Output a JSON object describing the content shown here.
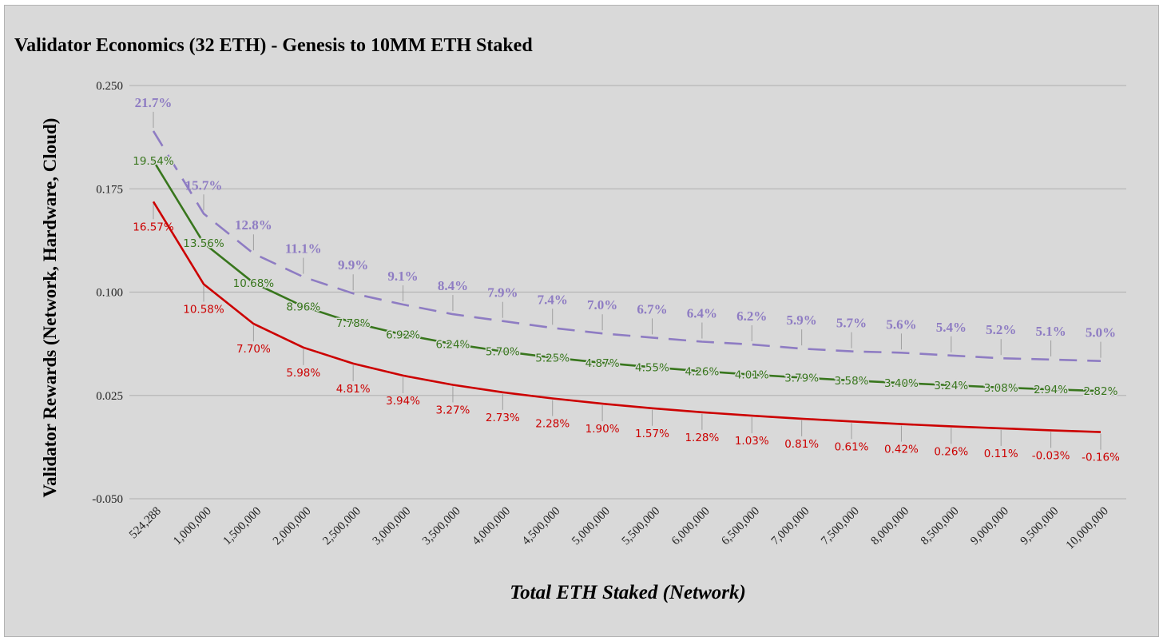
{
  "chart_data": {
    "type": "line",
    "title": "Validator Economics (32 ETH) - Genesis to 10MM ETH Staked",
    "xlabel": "Total ETH Staked (Network)",
    "ylabel": "Validator Rewards (Network, Hardware, Cloud)",
    "ylim": [
      -0.05,
      0.25
    ],
    "yticks": [
      0.25,
      0.175,
      0.1,
      0.025,
      -0.05
    ],
    "ytick_labels": [
      "0.250",
      "0.175",
      "0.100",
      "0.025",
      "-0.050"
    ],
    "grid": true,
    "legend": "none",
    "categories": [
      "524,288",
      "1,000,000",
      "1,500,000",
      "2,000,000",
      "2,500,000",
      "3,000,000",
      "3,500,000",
      "4,000,000",
      "4,500,000",
      "5,000,000",
      "5,500,000",
      "6,000,000",
      "6,500,000",
      "7,000,000",
      "7,500,000",
      "8,000,000",
      "8,500,000",
      "9,000,000",
      "9,500,000",
      "10,000,000"
    ],
    "series": [
      {
        "name": "Network",
        "color": "#8e7cc3",
        "style": "dashed",
        "values": [
          0.217,
          0.157,
          0.128,
          0.111,
          0.099,
          0.091,
          0.084,
          0.079,
          0.074,
          0.07,
          0.067,
          0.064,
          0.062,
          0.059,
          0.057,
          0.056,
          0.054,
          0.052,
          0.051,
          0.05
        ],
        "labels": [
          "21.7%",
          "15.7%",
          "12.8%",
          "11.1%",
          "9.9%",
          "9.1%",
          "8.4%",
          "7.9%",
          "7.4%",
          "7.0%",
          "6.7%",
          "6.4%",
          "6.2%",
          "5.9%",
          "5.7%",
          "5.6%",
          "5.4%",
          "5.2%",
          "5.1%",
          "5.0%"
        ]
      },
      {
        "name": "Hardware",
        "color": "#38761d",
        "style": "solid",
        "values": [
          0.1954,
          0.1356,
          0.1068,
          0.0896,
          0.0778,
          0.0692,
          0.0624,
          0.057,
          0.0525,
          0.0487,
          0.0455,
          0.0426,
          0.0401,
          0.0379,
          0.0358,
          0.034,
          0.0324,
          0.0308,
          0.0294,
          0.0282
        ],
        "labels": [
          "19.54%",
          "13.56%",
          "10.68%",
          "8.96%",
          "7.78%",
          "6.92%",
          "6.24%",
          "5.70%",
          "5.25%",
          "4.87%",
          "4.55%",
          "4.26%",
          "4.01%",
          "3.79%",
          "3.58%",
          "3.40%",
          "3.24%",
          "3.08%",
          "2.94%",
          "2.82%"
        ]
      },
      {
        "name": "Cloud",
        "color": "#cc0000",
        "style": "solid",
        "values": [
          0.1657,
          0.1058,
          0.077,
          0.0598,
          0.0481,
          0.0394,
          0.0327,
          0.0273,
          0.0228,
          0.019,
          0.0157,
          0.0128,
          0.0103,
          0.0081,
          0.0061,
          0.0042,
          0.0026,
          0.0011,
          -0.0003,
          -0.0016
        ],
        "labels": [
          "16.57%",
          "10.58%",
          "7.70%",
          "5.98%",
          "4.81%",
          "3.94%",
          "3.27%",
          "2.73%",
          "2.28%",
          "1.90%",
          "1.57%",
          "1.28%",
          "1.03%",
          "0.81%",
          "0.61%",
          "0.42%",
          "0.26%",
          "0.11%",
          "-0.03%",
          "-0.16%"
        ]
      }
    ]
  }
}
